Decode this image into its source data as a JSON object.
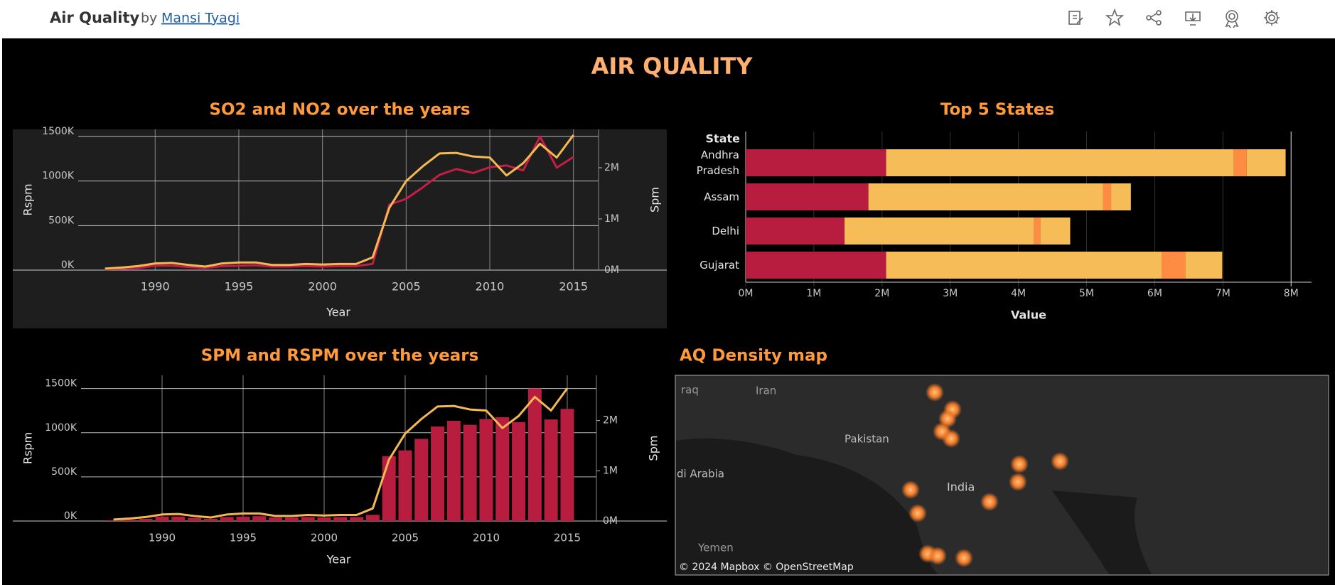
{
  "header": {
    "title": "Air Quality",
    "by": "by",
    "author": "Mansi Tyagi"
  },
  "dashboard_title": "AIR QUALITY",
  "chart_data": [
    {
      "type": "line",
      "title": "SO2 and NO2 over the years",
      "xlabel": "Year",
      "ylabel": "Rspm",
      "y2label": "Spm",
      "x": [
        1987,
        1988,
        1989,
        1990,
        1991,
        1992,
        1993,
        1994,
        1995,
        1996,
        1997,
        1998,
        1999,
        2000,
        2001,
        2002,
        2003,
        2004,
        2005,
        2006,
        2007,
        2008,
        2009,
        2010,
        2011,
        2012,
        2013,
        2014,
        2015
      ],
      "xlim": [
        1985.4,
        2016.5
      ],
      "xticks": [
        1990,
        1995,
        2000,
        2005,
        2010,
        2015
      ],
      "ylim": [
        0,
        1580000
      ],
      "yticks": [
        {
          "value": 0,
          "label": "0K"
        },
        {
          "value": 500000,
          "label": "500K"
        },
        {
          "value": 1000000,
          "label": "1000K"
        },
        {
          "value": 1500000,
          "label": "1500K"
        }
      ],
      "y2lim": [
        0,
        2750000
      ],
      "y2ticks": [
        {
          "value": 0,
          "label": "0M"
        },
        {
          "value": 1000000,
          "label": "1M"
        },
        {
          "value": 2000000,
          "label": "2M"
        }
      ],
      "grid": true,
      "series": [
        {
          "color": "#c41e47",
          "values": [
            10000,
            15000,
            25000,
            50000,
            50000,
            35000,
            25000,
            45000,
            50000,
            55000,
            40000,
            40000,
            45000,
            40000,
            45000,
            45000,
            70000,
            735000,
            800000,
            930000,
            1070000,
            1135000,
            1090000,
            1155000,
            1175000,
            1120000,
            1500000,
            1150000,
            1270000
          ]
        },
        {
          "color": "#f5b953",
          "axis": "y2",
          "values": [
            30000,
            50000,
            80000,
            130000,
            140000,
            100000,
            70000,
            130000,
            150000,
            150000,
            100000,
            100000,
            120000,
            110000,
            120000,
            120000,
            250000,
            1220000,
            1740000,
            2030000,
            2280000,
            2290000,
            2220000,
            2200000,
            1850000,
            2090000,
            2470000,
            2200000,
            2640000
          ]
        }
      ]
    },
    {
      "type": "combo",
      "title": "SPM and RSPM over the years",
      "xlabel": "Year",
      "ylabel": "Rspm",
      "y2label": "Spm",
      "x": [
        1987,
        1988,
        1989,
        1990,
        1991,
        1992,
        1993,
        1994,
        1995,
        1996,
        1997,
        1998,
        1999,
        2000,
        2001,
        2002,
        2003,
        2004,
        2005,
        2006,
        2007,
        2008,
        2009,
        2010,
        2011,
        2012,
        2013,
        2014,
        2015
      ],
      "xlim": [
        1985.0,
        2016.8
      ],
      "xticks": [
        1990,
        1995,
        2000,
        2005,
        2010,
        2015
      ],
      "ylim": [
        0,
        1650000
      ],
      "yticks": [
        {
          "value": 0,
          "label": "0K"
        },
        {
          "value": 500000,
          "label": "500K"
        },
        {
          "value": 1000000,
          "label": "1000K"
        },
        {
          "value": 1500000,
          "label": "1500K"
        }
      ],
      "y2lim": [
        0,
        2900000
      ],
      "y2ticks": [
        {
          "value": 0,
          "label": "0M"
        },
        {
          "value": 1000000,
          "label": "1M"
        },
        {
          "value": 2000000,
          "label": "2M"
        }
      ],
      "grid": true,
      "series": [
        {
          "type": "bar",
          "color": "#b81d3f",
          "values": [
            10000,
            15000,
            25000,
            50000,
            50000,
            35000,
            25000,
            45000,
            50000,
            55000,
            40000,
            40000,
            45000,
            40000,
            45000,
            45000,
            70000,
            735000,
            800000,
            930000,
            1070000,
            1135000,
            1090000,
            1155000,
            1175000,
            1120000,
            1500000,
            1150000,
            1270000
          ]
        },
        {
          "type": "line",
          "color": "#f5b953",
          "axis": "y2",
          "values": [
            30000,
            50000,
            80000,
            130000,
            140000,
            100000,
            70000,
            130000,
            150000,
            150000,
            100000,
            100000,
            120000,
            110000,
            120000,
            120000,
            250000,
            1220000,
            1740000,
            2030000,
            2280000,
            2290000,
            2220000,
            2200000,
            1850000,
            2090000,
            2470000,
            2200000,
            2640000
          ]
        }
      ]
    },
    {
      "type": "stacked_bar",
      "title": "Top 5 States",
      "ylabel": "State",
      "xlabel": "Value",
      "categories": [
        "Andhra Pradesh",
        "Assam",
        "Delhi",
        "Gujarat"
      ],
      "xlim": [
        0,
        8300000
      ],
      "xticks": [
        {
          "value": 0,
          "label": "0M"
        },
        {
          "value": 1000000,
          "label": "1M"
        },
        {
          "value": 2000000,
          "label": "2M"
        },
        {
          "value": 3000000,
          "label": "3M"
        },
        {
          "value": 4000000,
          "label": "4M"
        },
        {
          "value": 5000000,
          "label": "5M"
        },
        {
          "value": 6000000,
          "label": "6M"
        },
        {
          "value": 7000000,
          "label": "7M"
        },
        {
          "value": 8000000,
          "label": "8M"
        }
      ],
      "series": [
        {
          "color": "#b81d3f",
          "values": [
            2060000,
            1800000,
            1450000,
            2060000
          ]
        },
        {
          "color": "#f5bc58",
          "values": [
            5100000,
            3440000,
            2780000,
            4040000
          ]
        },
        {
          "color": "#ff8c42",
          "values": [
            190000,
            120000,
            90000,
            350000
          ]
        },
        {
          "color": "#f5bc58",
          "values": [
            570000,
            290000,
            440000,
            540000
          ]
        }
      ]
    }
  ],
  "map": {
    "title": "AQ Density map",
    "labels": [
      "raq",
      "Iran",
      "Pakistan",
      "di Arabia",
      "India",
      "Yemen"
    ],
    "attribution": "© 2024 Mapbox © OpenStreetMap"
  }
}
